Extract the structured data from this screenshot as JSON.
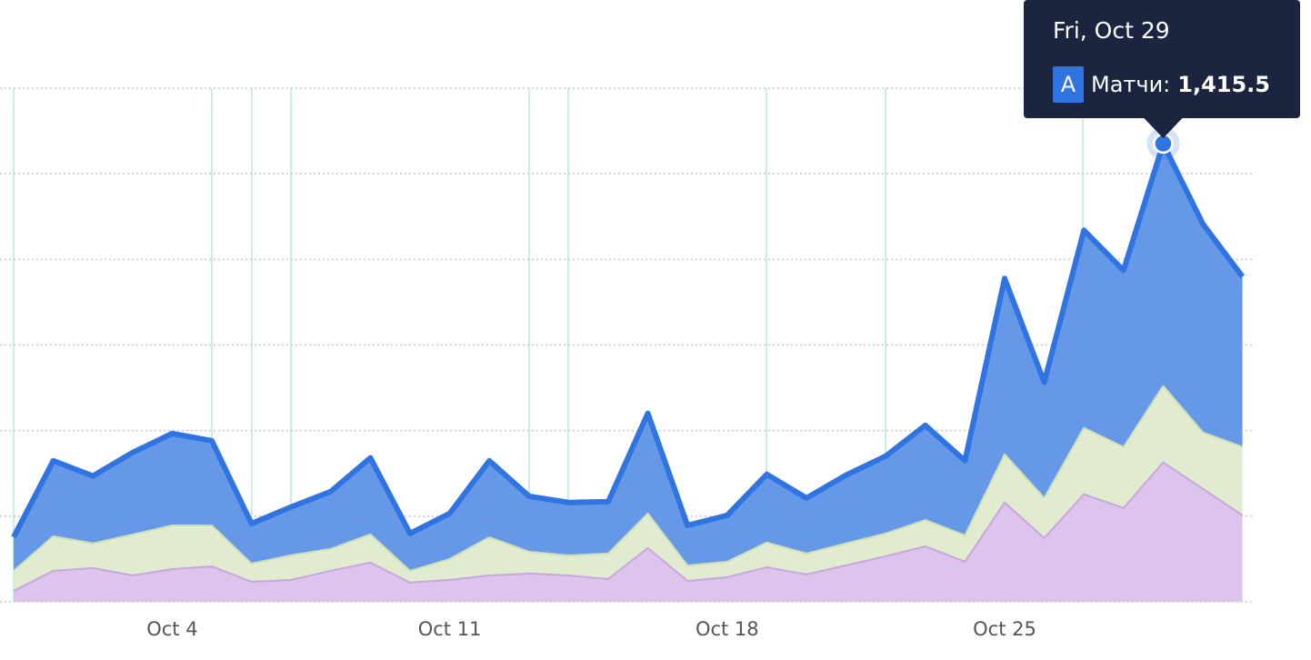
{
  "chart_data": {
    "type": "area",
    "categories": [
      null,
      null,
      null,
      null,
      "Oct 4",
      null,
      null,
      null,
      null,
      null,
      null,
      "Oct 11",
      null,
      null,
      null,
      null,
      null,
      null,
      "Oct 18",
      null,
      null,
      null,
      null,
      null,
      null,
      "Oct 25",
      null,
      null,
      null,
      null,
      null,
      null
    ],
    "series": [
      {
        "color": "#dcc4ec",
        "line_color": "#c9a6df",
        "values": [
          64,
          181,
          197,
          154,
          191,
          207,
          117,
          128,
          181,
          229,
          112,
          128,
          154,
          165,
          154,
          133,
          314,
          122,
          144,
          202,
          160,
          213,
          266,
          324,
          234,
          580,
          372,
          628,
          548,
          814,
          660,
          505
        ]
      },
      {
        "color": "#e1ebcf",
        "line_color": "#cfdfb2",
        "values": [
          117,
          202,
          144,
          239,
          255,
          239,
          106,
          144,
          128,
          165,
          69,
          122,
          223,
          128,
          117,
          149,
          202,
          90,
          90,
          144,
          122,
          128,
          133,
          154,
          154,
          282,
          234,
          388,
          356,
          447,
          330,
          399
        ]
      },
      {
        "color": "#6698e8",
        "line_color": "#2f74e0",
        "values": [
          197,
          441,
          394,
          479,
          537,
          495,
          234,
          282,
          335,
          447,
          218,
          266,
          447,
          324,
          309,
          303,
          585,
          234,
          271,
          399,
          324,
          399,
          452,
          553,
          436,
          1027,
          676,
          1154,
          1032,
          1415.5,
          1218,
          995
        ],
        "value_labels": [
          null,
          null,
          null,
          null,
          null,
          null,
          null,
          null,
          null,
          null,
          null,
          null,
          null,
          null,
          null,
          null,
          null,
          null,
          null,
          null,
          null,
          null,
          null,
          null,
          null,
          null,
          null,
          null,
          null,
          "1,415.5",
          null,
          null
        ]
      }
    ],
    "stacked": true,
    "ylim": [
      0,
      3000
    ],
    "yticks": [
      0,
      500,
      1000,
      1500,
      2000,
      2500,
      3000
    ],
    "grid": true,
    "tooltip": {
      "title": "Fri, Oct 29",
      "badge": "A",
      "label": "Матчи:"
    }
  }
}
